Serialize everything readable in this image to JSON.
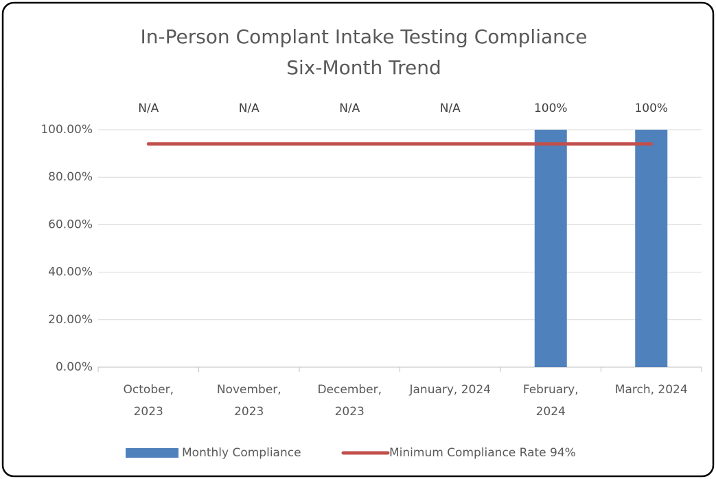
{
  "chart_data": {
    "type": "bar",
    "title": [
      "In-Person Complant Intake Testing Compliance",
      "Six-Month Trend"
    ],
    "categories": [
      "October, 2023",
      "November, 2023",
      "December, 2023",
      "January, 2024",
      "February, 2024",
      "March, 2024"
    ],
    "series": [
      {
        "name": "Monthly Compliance",
        "type": "bar",
        "color": "#4f81bd",
        "values": [
          null,
          null,
          null,
          null,
          100,
          100
        ],
        "value_labels": [
          "N/A",
          "N/A",
          "N/A",
          "N/A",
          "100%",
          "100%"
        ]
      },
      {
        "name": "Minimum Compliance Rate 94%",
        "type": "line",
        "color": "#c0504d",
        "values": [
          94,
          94,
          94,
          94,
          94,
          94
        ]
      }
    ],
    "ylim": [
      0,
      100
    ],
    "yticks": [
      {
        "value": 0,
        "label": "0.00%"
      },
      {
        "value": 20,
        "label": "20.00%"
      },
      {
        "value": 40,
        "label": "40.00%"
      },
      {
        "value": 60,
        "label": "60.00%"
      },
      {
        "value": 80,
        "label": "80.00%"
      },
      {
        "value": 100,
        "label": "100.00%"
      }
    ],
    "grid": true,
    "legend": "bottom"
  }
}
